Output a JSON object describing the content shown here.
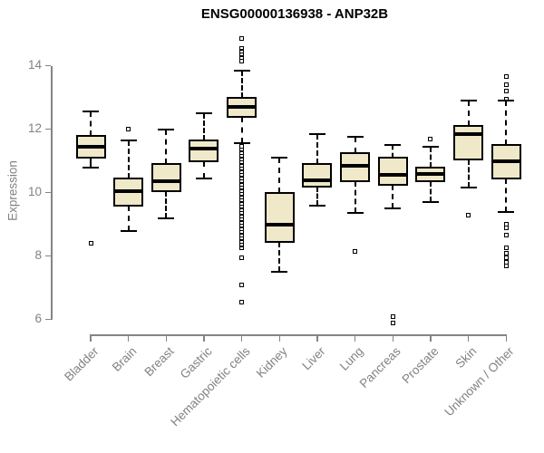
{
  "chart_data": {
    "type": "boxplot",
    "title": "ENSG00000136938 - ANP32B",
    "ylabel": "Expression",
    "xlabel": "",
    "ylim": [
      6,
      14
    ],
    "yticks": [
      6,
      8,
      10,
      12,
      14
    ],
    "grid": false,
    "legend": "none",
    "box_fill_color": "#EFE8C9",
    "box_line_color": "#000000",
    "axis_color": "#848484",
    "axis_text_color": "#828282",
    "title_color": "#000000",
    "categories": [
      "Bladder",
      "Brain",
      "Breast",
      "Gastric",
      "Hematopoietic cells",
      "Kidney",
      "Liver",
      "Lung",
      "Pancreas",
      "Prostate",
      "Skin",
      "Unknown / Other"
    ],
    "series": [
      {
        "name": "Bladder",
        "whisker_low": 10.8,
        "q1": 11.1,
        "median": 11.45,
        "q3": 11.8,
        "whisker_high": 12.55,
        "outliers": [
          8.4
        ]
      },
      {
        "name": "Brain",
        "whisker_low": 8.8,
        "q1": 9.6,
        "median": 10.05,
        "q3": 10.45,
        "whisker_high": 11.65,
        "outliers": [
          12.0
        ]
      },
      {
        "name": "Breast",
        "whisker_low": 9.2,
        "q1": 10.05,
        "median": 10.35,
        "q3": 10.9,
        "whisker_high": 12.0,
        "outliers": []
      },
      {
        "name": "Gastric",
        "whisker_low": 10.45,
        "q1": 11.0,
        "median": 11.4,
        "q3": 11.65,
        "whisker_high": 12.5,
        "outliers": []
      },
      {
        "name": "Hematopoietic cells",
        "whisker_low": 11.55,
        "q1": 12.4,
        "median": 12.7,
        "q3": 13.0,
        "whisker_high": 13.85,
        "outliers": [
          14.85,
          14.55,
          14.45,
          14.35,
          14.25,
          14.15,
          11.45,
          11.35,
          11.25,
          11.15,
          11.05,
          10.95,
          10.85,
          10.75,
          10.65,
          10.55,
          10.45,
          10.35,
          10.25,
          10.15,
          10.05,
          9.95,
          9.85,
          9.75,
          9.65,
          9.55,
          9.45,
          9.35,
          9.25,
          9.15,
          9.05,
          8.95,
          8.85,
          8.75,
          8.65,
          8.55,
          8.45,
          8.35,
          8.25,
          7.95,
          7.1,
          6.55
        ]
      },
      {
        "name": "Kidney",
        "whisker_low": 7.5,
        "q1": 8.45,
        "median": 9.0,
        "q3": 10.0,
        "whisker_high": 11.1,
        "outliers": []
      },
      {
        "name": "Liver",
        "whisker_low": 9.6,
        "q1": 10.2,
        "median": 10.4,
        "q3": 10.9,
        "whisker_high": 11.85,
        "outliers": []
      },
      {
        "name": "Lung",
        "whisker_low": 9.35,
        "q1": 10.35,
        "median": 10.85,
        "q3": 11.25,
        "whisker_high": 11.75,
        "outliers": [
          8.15
        ]
      },
      {
        "name": "Pancreas",
        "whisker_low": 9.5,
        "q1": 10.25,
        "median": 10.55,
        "q3": 11.1,
        "whisker_high": 11.5,
        "outliers": [
          6.1,
          5.9
        ]
      },
      {
        "name": "Prostate",
        "whisker_low": 9.7,
        "q1": 10.35,
        "median": 10.6,
        "q3": 10.8,
        "whisker_high": 11.45,
        "outliers": [
          11.7
        ]
      },
      {
        "name": "Skin",
        "whisker_low": 10.15,
        "q1": 11.05,
        "median": 11.85,
        "q3": 12.1,
        "whisker_high": 12.9,
        "outliers": [
          9.3
        ]
      },
      {
        "name": "Unknown / Other",
        "whisker_low": 9.4,
        "q1": 10.45,
        "median": 11.0,
        "q3": 11.5,
        "whisker_high": 12.9,
        "outliers": [
          13.65,
          13.4,
          13.2,
          12.95,
          9.0,
          8.9,
          8.65,
          8.25,
          8.1,
          7.95,
          7.8,
          7.7
        ]
      }
    ]
  }
}
